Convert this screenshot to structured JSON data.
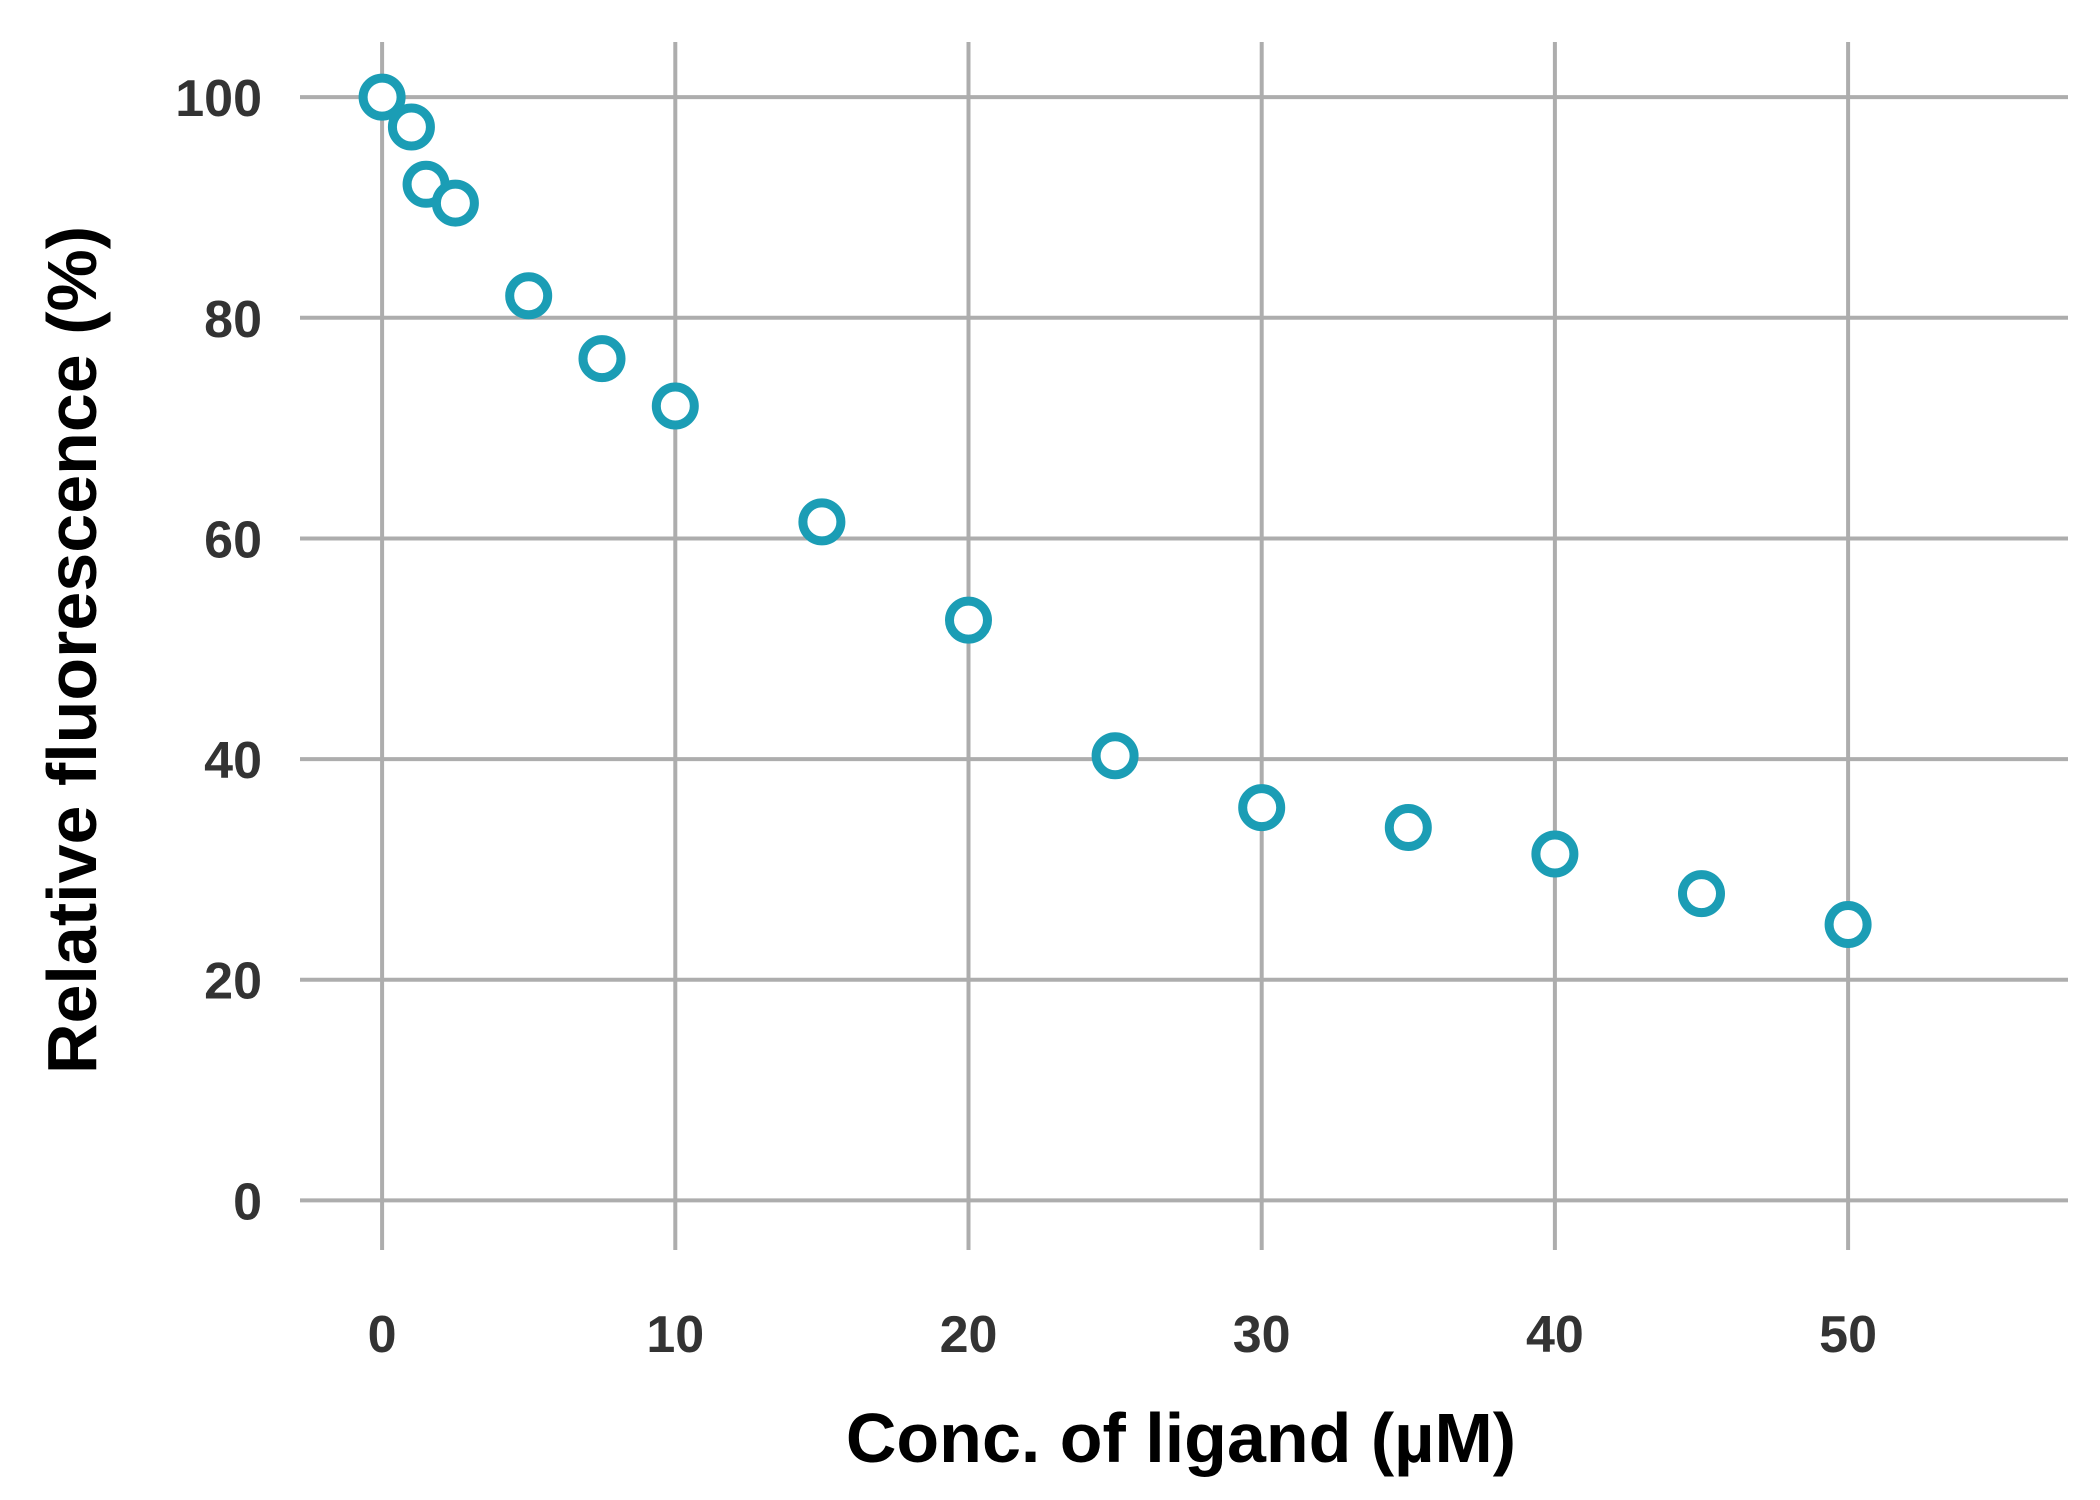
{
  "chart_data": {
    "type": "scatter",
    "title": "",
    "xlabel": "Conc. of ligand (µM)",
    "ylabel": "Relative fluorescence (%)",
    "xlim": [
      -2.8,
      57.5
    ],
    "ylim": [
      -4.5,
      105
    ],
    "x_ticks": [
      0,
      10,
      20,
      30,
      40,
      50
    ],
    "y_ticks": [
      0,
      20,
      40,
      60,
      80,
      100
    ],
    "x_tick_labels": [
      "0",
      "10",
      "20",
      "30",
      "40",
      "50"
    ],
    "y_tick_labels": [
      "0",
      "20",
      "40",
      "60",
      "80",
      "100"
    ],
    "grid": true,
    "marker": "open-circle",
    "colors": {
      "marker": "#1b9db5",
      "grid": "#adadad",
      "tick_text": "#333333",
      "axis_title": "#000000"
    },
    "series": [
      {
        "x": [
          0,
          1,
          1.5,
          2.5,
          5,
          7.5,
          10,
          15,
          20,
          25,
          30,
          35,
          40,
          45,
          50
        ],
        "y": [
          100,
          97.3,
          92.1,
          90.4,
          82.0,
          76.3,
          72.0,
          61.5,
          52.6,
          40.3,
          35.6,
          33.8,
          31.4,
          27.8,
          25.0
        ]
      }
    ]
  }
}
